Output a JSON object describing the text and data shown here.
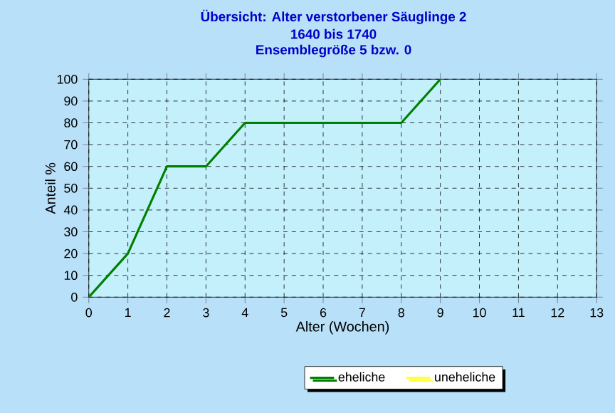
{
  "chart_data": {
    "type": "line",
    "title": "Übersicht: Alter verstorbener Säuglinge 2",
    "subtitle": "1640 bis 1740",
    "annotations": [
      "Ensemblegröße 5 bzw. 0"
    ],
    "xlabel": "Alter (Wochen)",
    "ylabel": "Anteil %",
    "x": [
      0,
      1,
      2,
      3,
      4,
      5,
      6,
      7,
      8,
      9
    ],
    "series": [
      {
        "name": "eheliche",
        "color": "#008000",
        "values": [
          0,
          20,
          60,
          60,
          80,
          80,
          80,
          80,
          80,
          100
        ]
      },
      {
        "name": "uneheliche",
        "color": "#ffff40",
        "values": [
          null,
          null,
          null,
          null,
          null,
          null,
          null,
          null,
          null,
          null
        ]
      }
    ],
    "xlim": [
      0,
      13
    ],
    "xticks": [
      0,
      1,
      2,
      3,
      4,
      5,
      6,
      7,
      8,
      9,
      10,
      11,
      12,
      13
    ],
    "ylim": [
      0,
      100
    ],
    "yticks": [
      0,
      10,
      20,
      30,
      40,
      50,
      60,
      70,
      80,
      90,
      100
    ],
    "grid": true,
    "legend": "bottom",
    "marker": "none",
    "line_style": "solid"
  }
}
